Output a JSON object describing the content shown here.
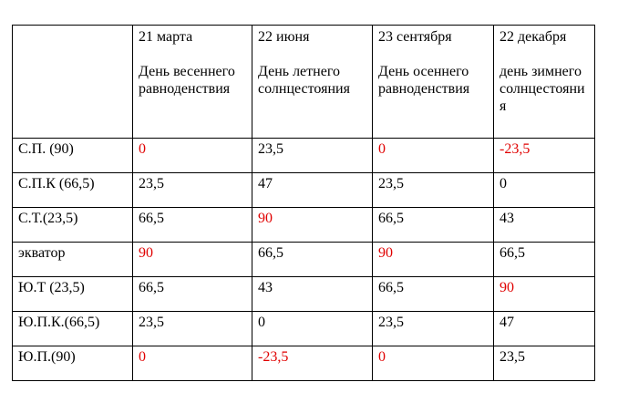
{
  "table": {
    "header": [
      {
        "date": "",
        "description": ""
      },
      {
        "date": "21 марта",
        "description": "День весеннего равноденствия"
      },
      {
        "date": "22 июня",
        "description": "День летнего солнцестояния"
      },
      {
        "date": "23 сентября",
        "description": "День осеннего равноденствия"
      },
      {
        "date": "22 декабря",
        "description": "день зимнего солнцестояния"
      }
    ],
    "rows": [
      {
        "label": "С.П. (90)",
        "cells": [
          {
            "text": "0",
            "color": "#e00000"
          },
          {
            "text": "23,5",
            "color": "#000000"
          },
          {
            "text": "0",
            "color": "#e00000"
          },
          {
            "text": "-23,5",
            "color": "#e00000"
          }
        ]
      },
      {
        "label": "С.П.К (66,5)",
        "cells": [
          {
            "text": "23,5",
            "color": "#000000"
          },
          {
            "text": "47",
            "color": "#000000"
          },
          {
            "text": "23,5",
            "color": "#000000"
          },
          {
            "text": "0",
            "color": "#000000"
          }
        ]
      },
      {
        "label": "С.Т.(23,5)",
        "cells": [
          {
            "text": "66,5",
            "color": "#000000"
          },
          {
            "text": "90",
            "color": "#e00000"
          },
          {
            "text": "66,5",
            "color": "#000000"
          },
          {
            "text": "43",
            "color": "#000000"
          }
        ]
      },
      {
        "label": "экватор",
        "cells": [
          {
            "text": "90",
            "color": "#e00000"
          },
          {
            "text": "66,5",
            "color": "#000000"
          },
          {
            "text": "90",
            "color": "#e00000"
          },
          {
            "text": "66,5",
            "color": "#000000"
          }
        ]
      },
      {
        "label": "Ю.Т (23,5)",
        "cells": [
          {
            "text": "66,5",
            "color": "#000000"
          },
          {
            "text": "43",
            "color": "#000000"
          },
          {
            "text": "66,5",
            "color": "#000000"
          },
          {
            "text": "90",
            "color": "#e00000"
          }
        ]
      },
      {
        "label": "Ю.П.К.(66,5)",
        "cells": [
          {
            "text": "23,5",
            "color": "#000000"
          },
          {
            "text": "0",
            "color": "#000000"
          },
          {
            "text": "23,5",
            "color": "#000000"
          },
          {
            "text": "47",
            "color": "#000000"
          }
        ]
      },
      {
        "label": "Ю.П.(90)",
        "cells": [
          {
            "text": "0",
            "color": "#e00000"
          },
          {
            "text": "-23,5",
            "color": "#e00000"
          },
          {
            "text": "0",
            "color": "#e00000"
          },
          {
            "text": "23,5",
            "color": "#000000"
          }
        ]
      }
    ]
  }
}
